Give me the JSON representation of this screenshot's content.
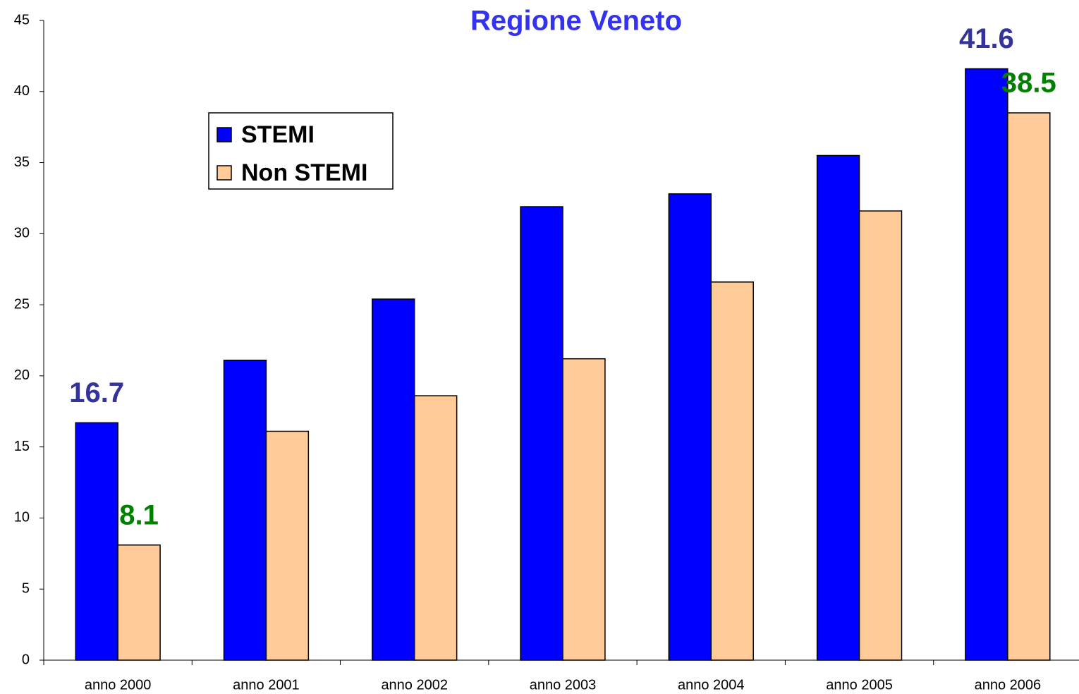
{
  "chart_data": {
    "type": "bar",
    "title": "Regione Veneto",
    "categories": [
      "anno 2000",
      "anno 2001",
      "anno 2002",
      "anno 2003",
      "anno 2004",
      "anno 2005",
      "anno 2006"
    ],
    "series": [
      {
        "name": "STEMI",
        "color": "#0000ff",
        "label_color": "#333399",
        "values": [
          16.7,
          21.1,
          25.4,
          31.9,
          32.8,
          35.5,
          41.6
        ],
        "value_labels": [
          "16.7",
          null,
          null,
          null,
          null,
          null,
          "41.6"
        ]
      },
      {
        "name": "Non STEMI",
        "color": "#ffcc99",
        "label_color": "#008000",
        "values": [
          8.1,
          16.1,
          18.6,
          21.2,
          26.6,
          31.6,
          38.5
        ],
        "value_labels": [
          "8.1",
          null,
          null,
          null,
          null,
          null,
          "38.5"
        ]
      }
    ],
    "ylim": [
      0,
      45
    ],
    "yticks": [
      0,
      5,
      10,
      15,
      20,
      25,
      30,
      35,
      40,
      45
    ],
    "grid": false,
    "legend": "upper left"
  }
}
